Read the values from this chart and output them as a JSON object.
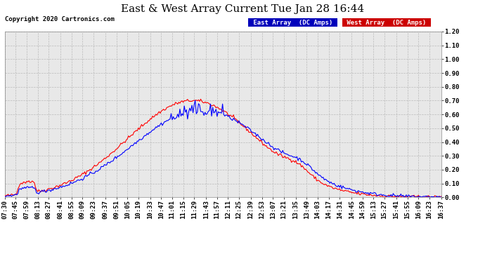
{
  "title": "East & West Array Current Tue Jan 28 16:44",
  "copyright": "Copyright 2020 Cartronics.com",
  "legend_east": "East Array  (DC Amps)",
  "legend_west": "West Array  (DC Amps)",
  "east_color": "#0000ff",
  "west_color": "#ff0000",
  "east_legend_bg": "#0000bb",
  "west_legend_bg": "#cc0000",
  "ylim": [
    0.0,
    1.2
  ],
  "yticks": [
    0.0,
    0.1,
    0.2,
    0.3,
    0.4,
    0.5,
    0.6,
    0.7,
    0.8,
    0.9,
    1.0,
    1.1,
    1.2
  ],
  "bg_color": "#ffffff",
  "plot_bg_color": "#e8e8e8",
  "grid_color": "#bbbbbb",
  "x_labels": [
    "07:30",
    "07:45",
    "07:59",
    "08:13",
    "08:27",
    "08:41",
    "08:55",
    "09:09",
    "09:23",
    "09:37",
    "09:51",
    "10:05",
    "10:19",
    "10:33",
    "10:47",
    "11:01",
    "11:15",
    "11:29",
    "11:43",
    "11:57",
    "12:11",
    "12:25",
    "12:39",
    "12:53",
    "13:07",
    "13:21",
    "13:35",
    "13:49",
    "14:03",
    "14:17",
    "14:31",
    "14:45",
    "14:59",
    "15:13",
    "15:27",
    "15:41",
    "15:55",
    "16:09",
    "16:23",
    "16:37"
  ],
  "title_fontsize": 11,
  "tick_fontsize": 6.5,
  "copyright_fontsize": 6.5
}
